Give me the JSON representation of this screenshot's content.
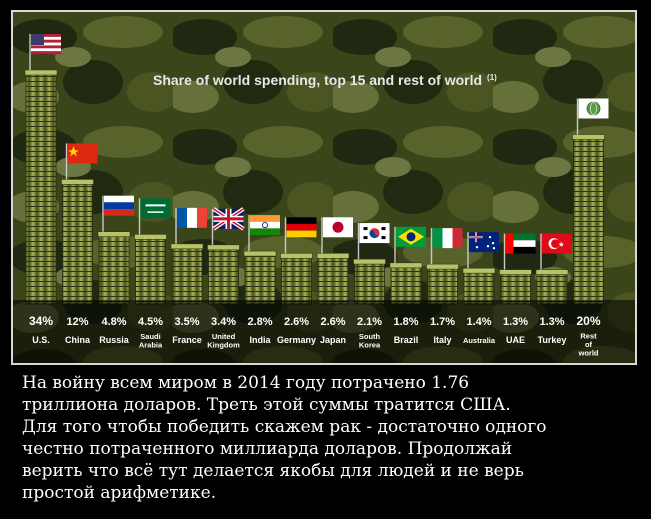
{
  "chart_data": {
    "type": "bar",
    "title": "Share of world spending, top 15 and rest of world",
    "title_note": "(1)",
    "categories": [
      "U.S.",
      "China",
      "Russia",
      "Saudi Arabia",
      "France",
      "United Kingdom",
      "India",
      "Germany",
      "Japan",
      "South Korea",
      "Brazil",
      "Italy",
      "Australia",
      "UAE",
      "Turkey",
      "Rest of world"
    ],
    "category_lines": [
      [
        "U.S."
      ],
      [
        "China"
      ],
      [
        "Russia"
      ],
      [
        "Saudi",
        "Arabia"
      ],
      [
        "France"
      ],
      [
        "United",
        "Kingdom"
      ],
      [
        "India"
      ],
      [
        "Germany"
      ],
      [
        "Japan"
      ],
      [
        "South",
        "Korea"
      ],
      [
        "Brazil"
      ],
      [
        "Italy"
      ],
      [
        "Australia"
      ],
      [
        "UAE"
      ],
      [
        "Turkey"
      ],
      [
        "Rest",
        "of",
        "world"
      ]
    ],
    "values": [
      34,
      12,
      4.8,
      4.5,
      3.5,
      3.4,
      2.8,
      2.6,
      2.6,
      2.1,
      1.8,
      1.7,
      1.4,
      1.3,
      1.3,
      20
    ],
    "value_labels": [
      "34%",
      "12%",
      "4.8%",
      "4.5%",
      "3.5%",
      "3.4%",
      "2.8%",
      "2.6%",
      "2.6%",
      "2.1%",
      "1.8%",
      "1.7%",
      "1.4%",
      "1.3%",
      "1.3%",
      "20%"
    ],
    "unit": "%",
    "xlabel": "",
    "ylabel": "",
    "ylim": [
      0,
      34
    ],
    "grid": false,
    "flags": [
      "us-flag",
      "china-flag",
      "russia-flag",
      "saudi-arabia-flag",
      "france-flag",
      "uk-flag",
      "india-flag",
      "germany-flag",
      "japan-flag",
      "south-korea-flag",
      "brazil-flag",
      "italy-flag",
      "australia-flag",
      "uae-flag",
      "turkey-flag",
      "world-flag"
    ],
    "colors": {
      "money_dark": "#3f4a14",
      "money_mid": "#6f7a28",
      "money_light": "#a9b25a",
      "label_bg": "#000000",
      "label_text": "#ffffff",
      "background_camo": [
        "#2f3a16",
        "#4b5624",
        "#1c2410",
        "#5f6a34"
      ]
    }
  },
  "caption": {
    "lines": [
      "На войну всем миром в 2014 году потрачено   1.76",
      "триллиона доларов. Треть этой суммы тратится США.",
      "Для того чтобы победить скажем рак -  достаточно одного",
      "честно потраченного миллиарда доларов. Продолжай",
      "верить что всё тут делается якобы для людей и не верь",
      "простой арифметике."
    ]
  }
}
